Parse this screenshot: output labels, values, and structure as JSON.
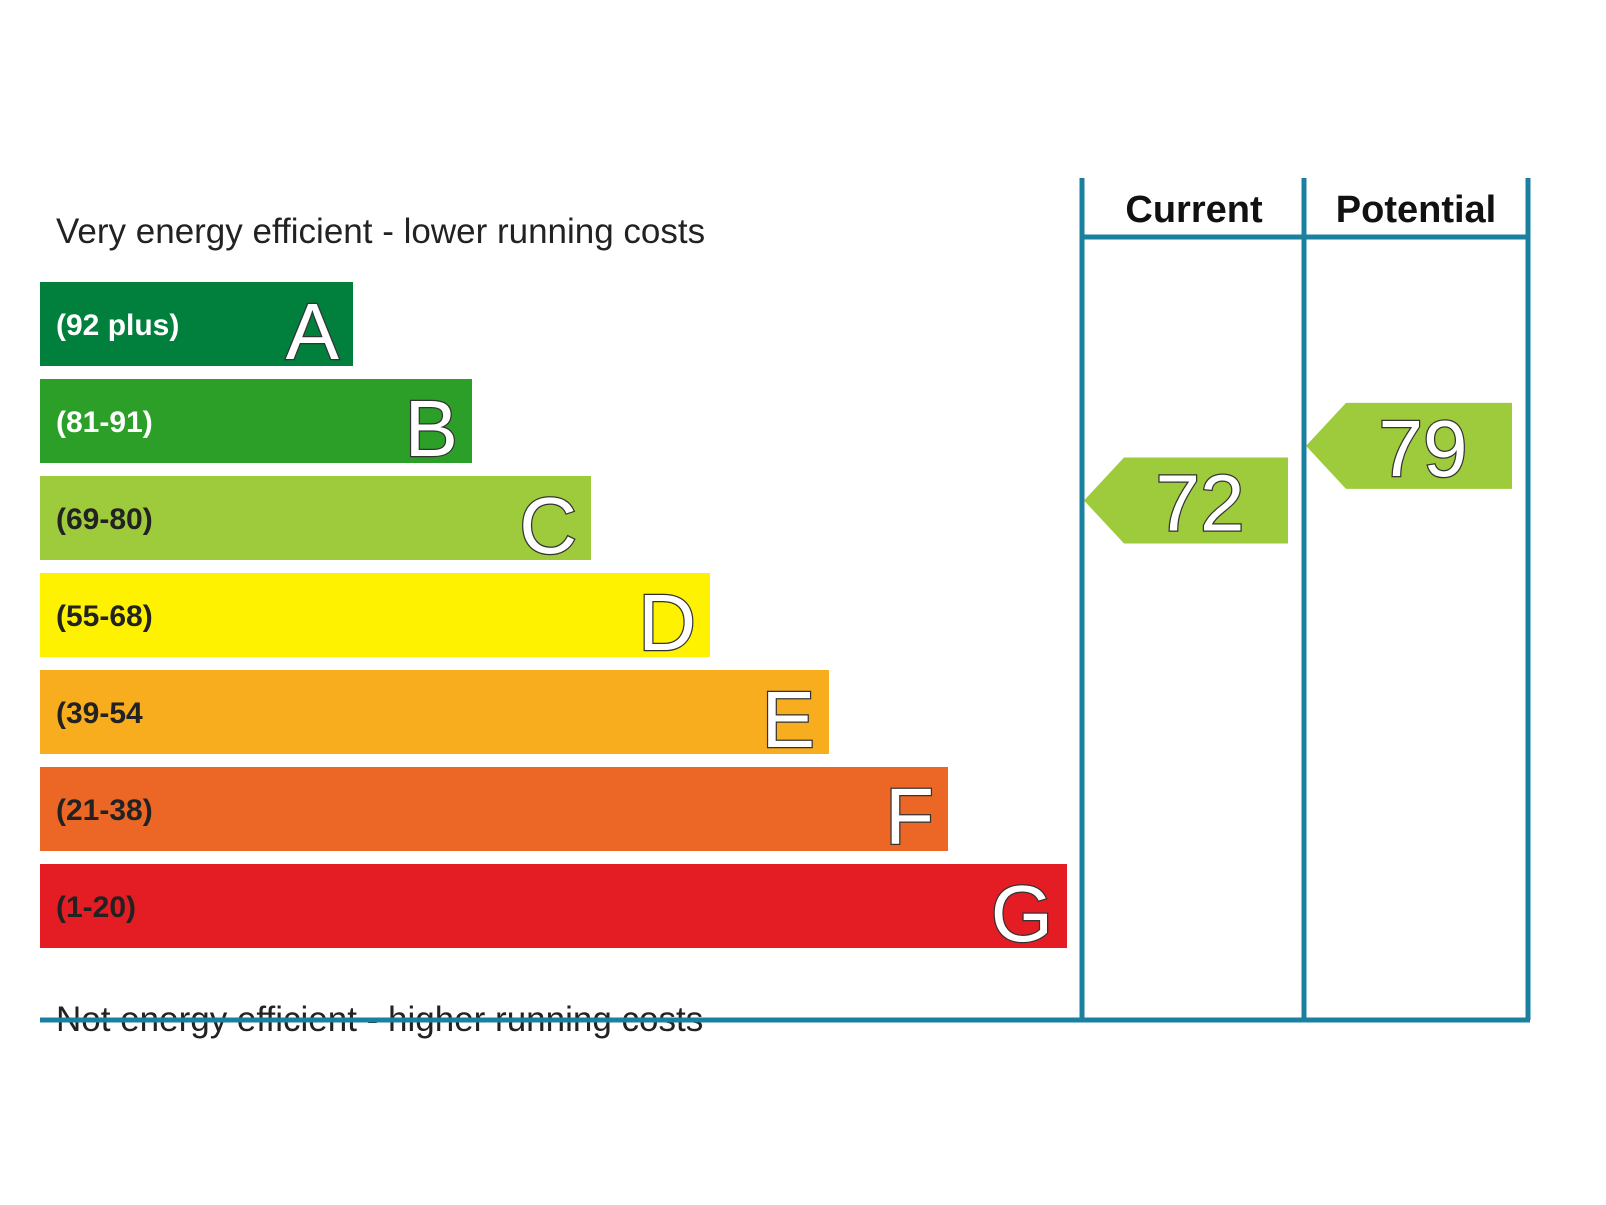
{
  "chart_data": {
    "type": "bar",
    "top_caption": "Very energy efficient - lower running costs",
    "bottom_caption": "Not energy efficient - higher running costs",
    "bands": [
      {
        "letter": "A",
        "range": "(92 plus)",
        "color": "#007f3d",
        "text_color": "#ffffff"
      },
      {
        "letter": "B",
        "range": "(81-91)",
        "color": "#2c9f29",
        "text_color": "#ffffff"
      },
      {
        "letter": "C",
        "range": "(69-80)",
        "color": "#9dcb3b",
        "text_color": "#222222"
      },
      {
        "letter": "D",
        "range": "(55-68)",
        "color": "#fff200",
        "text_color": "#222222"
      },
      {
        "letter": "E",
        "range": "(39-54",
        "color": "#f7ad1e",
        "text_color": "#222222"
      },
      {
        "letter": "F",
        "range": "(21-38)",
        "color": "#ec6725",
        "text_color": "#222222"
      },
      {
        "letter": "G",
        "range": "(1-20)",
        "color": "#e31d23",
        "text_color": "#222222"
      }
    ],
    "columns": [
      {
        "name": "Current",
        "value": 72,
        "band": "C",
        "color": "#9dcb3b"
      },
      {
        "name": "Potential",
        "value": 79,
        "band": "C",
        "color": "#9dcb3b"
      }
    ],
    "frame_color": "#1b7fa0"
  }
}
